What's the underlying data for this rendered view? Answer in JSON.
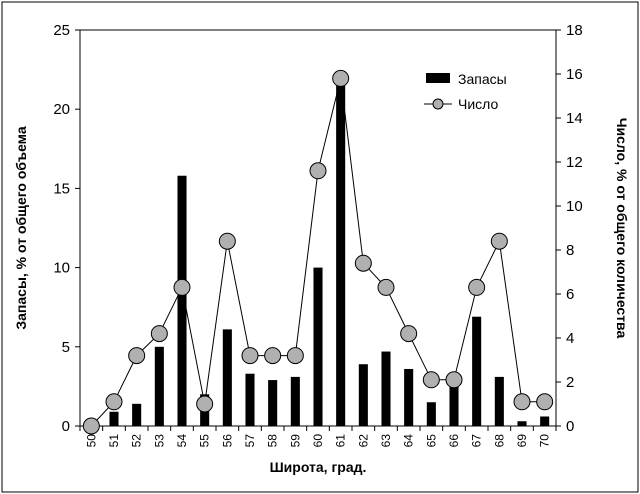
{
  "chart_data": {
    "type": "bar",
    "title": "",
    "xlabel": "Широта, град.",
    "ylabel": "Запасы, % от общего объема",
    "y2label": "Число, % от общего количества",
    "categories": [
      "50",
      "51",
      "52",
      "53",
      "54",
      "55",
      "56",
      "57",
      "58",
      "59",
      "60",
      "61",
      "62",
      "63",
      "64",
      "65",
      "66",
      "67",
      "68",
      "69",
      "70"
    ],
    "ylim": [
      0,
      25
    ],
    "yticks": [
      0,
      5,
      10,
      15,
      20,
      25
    ],
    "y2lim": [
      0,
      18
    ],
    "y2ticks": [
      0,
      2,
      4,
      6,
      8,
      10,
      12,
      14,
      16,
      18
    ],
    "grid": false,
    "legend_position": "top-right",
    "series": [
      {
        "name": "Запасы",
        "type": "bar",
        "axis": "left",
        "color": "#000000",
        "values": [
          0,
          0.9,
          1.4,
          5.0,
          15.8,
          2.0,
          6.1,
          3.3,
          2.9,
          3.1,
          10.0,
          21.5,
          3.9,
          4.7,
          3.6,
          1.5,
          2.8,
          6.9,
          3.1,
          0.3,
          0.6
        ]
      },
      {
        "name": "Число",
        "type": "line",
        "axis": "right",
        "color": "#000000",
        "marker_color": "#b0b0b0",
        "values": [
          0,
          1.1,
          3.2,
          4.2,
          6.3,
          1.0,
          8.4,
          3.2,
          3.2,
          3.2,
          11.6,
          15.8,
          7.4,
          6.3,
          4.2,
          2.1,
          2.1,
          6.3,
          8.4,
          1.1,
          1.1
        ]
      }
    ]
  }
}
